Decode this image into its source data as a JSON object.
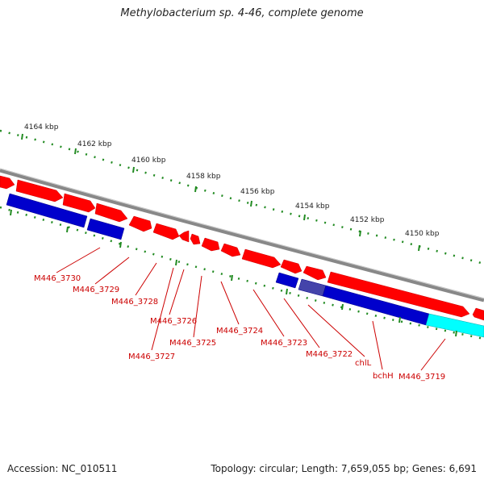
{
  "title": "Methylobacterium sp. 4-46, complete genome",
  "footer": {
    "accession": "Accession: NC_010511",
    "summary": "Topology: circular; Length: 7,659,055 bp; Genes: 6,691"
  },
  "ruler": [
    {
      "label": "4164 kbp"
    },
    {
      "label": "4162 kbp"
    },
    {
      "label": "4160 kbp"
    },
    {
      "label": "4158 kbp"
    },
    {
      "label": "4156 kbp"
    },
    {
      "label": "4154 kbp"
    },
    {
      "label": "4152 kbp"
    },
    {
      "label": "4150 kbp"
    }
  ],
  "genes": [
    {
      "label": "M446_3730"
    },
    {
      "label": "M446_3729"
    },
    {
      "label": "M446_3728"
    },
    {
      "label": "M446_3726"
    },
    {
      "label": "M446_3727"
    },
    {
      "label": "M446_3725"
    },
    {
      "label": "M446_3724"
    },
    {
      "label": "M446_3723"
    },
    {
      "label": "M446_3722"
    },
    {
      "label": "chlL"
    },
    {
      "label": "bchH"
    },
    {
      "label": "M446_3719"
    }
  ],
  "colors": {
    "forward_cds": "#ff0000",
    "reverse_cds": "#0000cc",
    "highlight_cds": "#00ffff",
    "backbone": "#888888",
    "tick": "#228b22",
    "gene_label": "#cc0000"
  }
}
